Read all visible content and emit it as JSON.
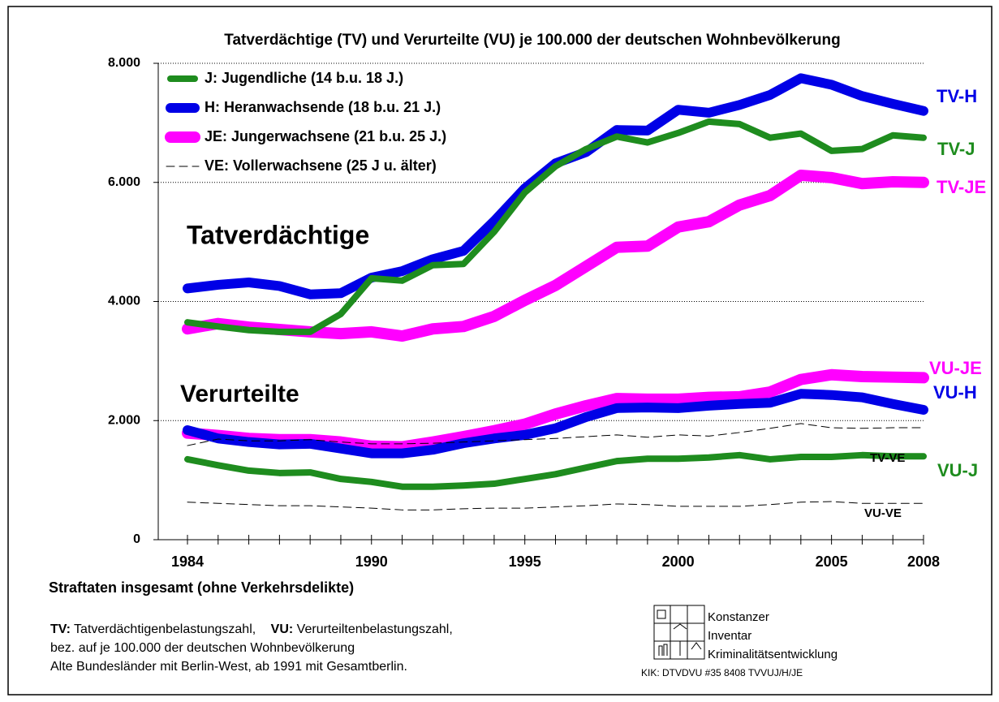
{
  "chart_data": {
    "type": "line",
    "title": "Tatverdächtige (TV)  und Verurteilte (VU) je 100.000 der deutschen Wohnbevölkerung",
    "x": [
      1984,
      1985,
      1986,
      1987,
      1988,
      1989,
      1990,
      1991,
      1992,
      1993,
      1994,
      1995,
      1996,
      1997,
      1998,
      1999,
      2000,
      2001,
      2002,
      2003,
      2004,
      2005,
      2006,
      2007,
      2008
    ],
    "xlim": [
      1984,
      2008
    ],
    "xticks": [
      1984,
      1990,
      1995,
      2000,
      2005,
      2008
    ],
    "ylim": [
      0,
      8000
    ],
    "yticks": [
      {
        "value": 0,
        "label": "0"
      },
      {
        "value": 2000,
        "label": "2.000"
      },
      {
        "value": 4000,
        "label": "4.000"
      },
      {
        "value": 6000,
        "label": "6.000"
      },
      {
        "value": 8000,
        "label": "8.000"
      }
    ],
    "grid": true,
    "series": [
      {
        "name": "TV-JE",
        "color": "#ff00ff",
        "width": 14,
        "values": [
          3540,
          3630,
          3570,
          3530,
          3490,
          3460,
          3490,
          3420,
          3540,
          3580,
          3750,
          4020,
          4270,
          4590,
          4910,
          4930,
          5250,
          5340,
          5620,
          5780,
          6120,
          6080,
          5980,
          6010,
          6000
        ]
      },
      {
        "name": "VU-JE",
        "color": "#ff00ff",
        "width": 14,
        "values": [
          1790,
          1750,
          1700,
          1680,
          1680,
          1640,
          1570,
          1560,
          1640,
          1730,
          1830,
          1940,
          2110,
          2250,
          2370,
          2360,
          2360,
          2390,
          2400,
          2480,
          2690,
          2770,
          2740,
          2730,
          2720
        ]
      },
      {
        "name": "TV-H",
        "color": "#0000e6",
        "width": 12,
        "values": [
          4220,
          4280,
          4320,
          4260,
          4120,
          4140,
          4400,
          4510,
          4710,
          4850,
          5350,
          5900,
          6320,
          6510,
          6880,
          6870,
          7220,
          7170,
          7300,
          7470,
          7750,
          7640,
          7450,
          7320,
          7200
        ]
      },
      {
        "name": "VU-H",
        "color": "#0000e6",
        "width": 12,
        "values": [
          1840,
          1700,
          1640,
          1600,
          1610,
          1530,
          1450,
          1450,
          1510,
          1620,
          1700,
          1760,
          1870,
          2060,
          2210,
          2220,
          2210,
          2250,
          2280,
          2300,
          2450,
          2430,
          2390,
          2280,
          2180
        ]
      },
      {
        "name": "TV-J",
        "color": "#1e8c1e",
        "width": 8,
        "values": [
          3650,
          3580,
          3520,
          3490,
          3490,
          3790,
          4390,
          4350,
          4610,
          4630,
          5170,
          5830,
          6270,
          6560,
          6770,
          6670,
          6830,
          7020,
          6980,
          6750,
          6820,
          6530,
          6560,
          6790,
          6750
        ]
      },
      {
        "name": "VU-J",
        "color": "#1e8c1e",
        "width": 8,
        "values": [
          1350,
          1250,
          1160,
          1120,
          1130,
          1020,
          970,
          890,
          890,
          910,
          940,
          1020,
          1100,
          1210,
          1320,
          1360,
          1360,
          1380,
          1420,
          1350,
          1390,
          1390,
          1420,
          1400,
          1400
        ]
      },
      {
        "name": "TV-VE",
        "color": "#000000",
        "width": 1,
        "dash": true,
        "values": [
          1580,
          1690,
          1660,
          1660,
          1680,
          1640,
          1610,
          1610,
          1620,
          1640,
          1660,
          1680,
          1700,
          1730,
          1760,
          1720,
          1760,
          1740,
          1800,
          1870,
          1950,
          1880,
          1870,
          1880,
          1880
        ]
      },
      {
        "name": "VU-VE",
        "color": "#000000",
        "width": 1,
        "dash": true,
        "values": [
          630,
          610,
          590,
          570,
          570,
          550,
          530,
          500,
          500,
          520,
          530,
          530,
          550,
          570,
          600,
          590,
          560,
          560,
          560,
          590,
          630,
          640,
          610,
          610,
          610
        ]
      }
    ],
    "legend": [
      {
        "label": "J:   Jugendliche (14 b.u. 18 J.)",
        "color": "#1e8c1e",
        "width": 8
      },
      {
        "label": "H:   Heranwachsende (18 b.u. 21 J.)",
        "color": "#0000e6",
        "width": 12
      },
      {
        "label": "JE: Jungerwachsene (21 b.u. 25 J.)",
        "color": "#ff00ff",
        "width": 14
      },
      {
        "label": "VE: Vollerwachsene (25 J u. älter)",
        "color": "#000000",
        "width": 1,
        "dash": true
      }
    ],
    "annotations": [
      "Tatverdächtige",
      "Verurteilte"
    ],
    "subtitle": "Straftaten insgesamt (ohne Verkehrsdelikte)",
    "notes": {
      "terms": [
        {
          "term": "TV:",
          "text": "Tatverdächtigenbelastungszahl,"
        },
        {
          "term": "VU:",
          "text": "Verurteiltenbelastungszahl,"
        }
      ],
      "lines": [
        "bez. auf je 100.000 der deutschen Wohnbevölkerung",
        "Alte Bundesländer mit Berlin-West, ab 1991 mit Gesamtberlin."
      ]
    },
    "logo": {
      "words": [
        "Konstanzer",
        "Inventar",
        "Kriminalitätsentwicklung"
      ],
      "code": "KIK: DTVDVU #35 8408 TVVUJ/H/JE"
    }
  }
}
